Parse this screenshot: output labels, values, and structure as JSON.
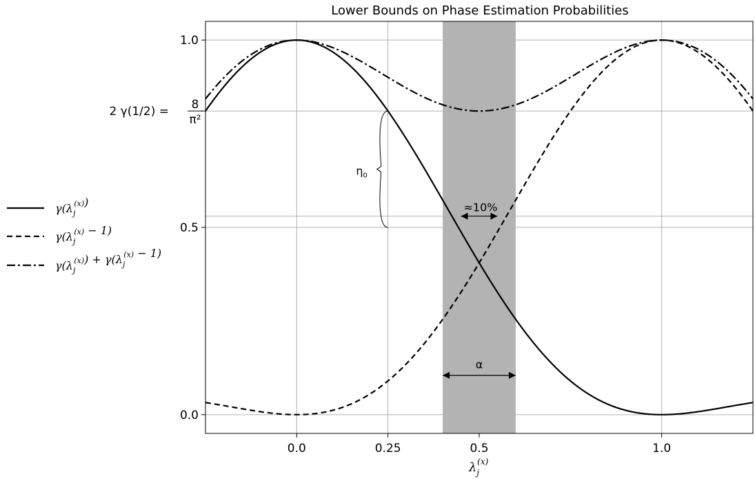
{
  "chart_data": {
    "type": "line",
    "title": "Lower Bounds on Phase Estimation Probabilities",
    "xlabel": "λj(x)",
    "xlabel_parts": {
      "base": "λ",
      "sub": "j",
      "sup": "(x)"
    },
    "ylabel": "",
    "xlim": [
      -0.25,
      1.25
    ],
    "ylim": [
      -0.05,
      1.05
    ],
    "grid": true,
    "xticks": [
      {
        "value": 0.0,
        "label": "0.0"
      },
      {
        "value": 0.25,
        "label": "0.25"
      },
      {
        "value": 0.5,
        "label": "0.5"
      },
      {
        "value": 1.0,
        "label": "1.0"
      }
    ],
    "yticks": [
      {
        "value": 0.0,
        "label": "0.0"
      },
      {
        "value": 0.5,
        "label": "0.5"
      },
      {
        "value": 0.8106,
        "label": "2 γ(1/2) = 8/π²",
        "label_parts": {
          "lhs": "2 γ(1/2) =",
          "num": "8",
          "den": "π²"
        }
      },
      {
        "value": 1.0,
        "label": "1.0"
      }
    ],
    "extra_hline": 0.5,
    "shaded_region": {
      "x_range": [
        0.4,
        0.6
      ],
      "color": "#b3b3b3"
    },
    "series": [
      {
        "name": "γ(λj(x))",
        "style": "solid",
        "formula": "sinc^2(x)"
      },
      {
        "name": "γ(λj(x) − 1)",
        "style": "dashed",
        "formula": "sinc^2(x-1)"
      },
      {
        "name": "γ(λj(x)) + γ(λj(x) − 1)",
        "style": "dashdot",
        "formula": "sinc^2(x)+sinc^2(x-1)"
      }
    ],
    "annotations": [
      {
        "text": "η0",
        "type": "brace",
        "x": 0.25,
        "y_range": [
          0.5,
          0.8106
        ]
      },
      {
        "text": "≈10%",
        "type": "double-arrow",
        "x_range": [
          0.45,
          0.55
        ],
        "y": 0.5
      },
      {
        "text": "α",
        "type": "double-arrow",
        "x_range": [
          0.4,
          0.6
        ],
        "y": 0.105
      }
    ],
    "legend_position": "left"
  },
  "legend": {
    "items": [
      {
        "base": "γ(λ",
        "tail": ")"
      },
      {
        "base": "γ(λ",
        "tail": " − 1)"
      },
      {
        "base": "γ(λ",
        "tail": ") + γ(λ",
        "tail2": " − 1)"
      }
    ],
    "sub": "j",
    "sup": "(x)"
  }
}
